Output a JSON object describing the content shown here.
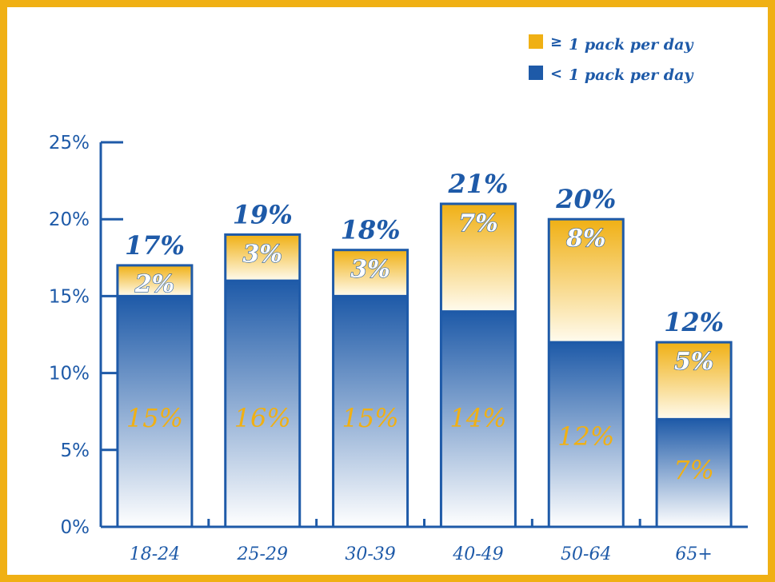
{
  "chart_data": {
    "type": "bar",
    "stacked": true,
    "categories": [
      "18-24",
      "25-29",
      "30-39",
      "40-49",
      "50-64",
      "65+"
    ],
    "series": [
      {
        "name": "< 1 pack per day",
        "values": [
          15,
          16,
          15,
          14,
          12,
          7
        ],
        "labels": [
          "15%",
          "16%",
          "15%",
          "14%",
          "12%",
          "7%"
        ],
        "color": "#1e5aa8"
      },
      {
        "name": "≥ 1 pack per day",
        "values": [
          2,
          3,
          3,
          7,
          8,
          5
        ],
        "labels": [
          "2%",
          "3%",
          "3%",
          "7%",
          "8%",
          "5%"
        ],
        "color": "#f0b014"
      }
    ],
    "totals": [
      "17%",
      "19%",
      "18%",
      "21%",
      "20%",
      "12%"
    ],
    "total_values": [
      17,
      19,
      18,
      21,
      20,
      12
    ],
    "y_ticks": [
      "0%",
      "5%",
      "10%",
      "15%",
      "20%",
      "25%"
    ],
    "ylim": [
      0,
      25
    ],
    "grid": false,
    "legend_position": "top-right",
    "legend": [
      {
        "symbol": "≥",
        "text": "1 pack per day",
        "color": "#f0b014"
      },
      {
        "symbol": "<",
        "text": "1 pack per day",
        "color": "#1e5aa8"
      }
    ]
  }
}
